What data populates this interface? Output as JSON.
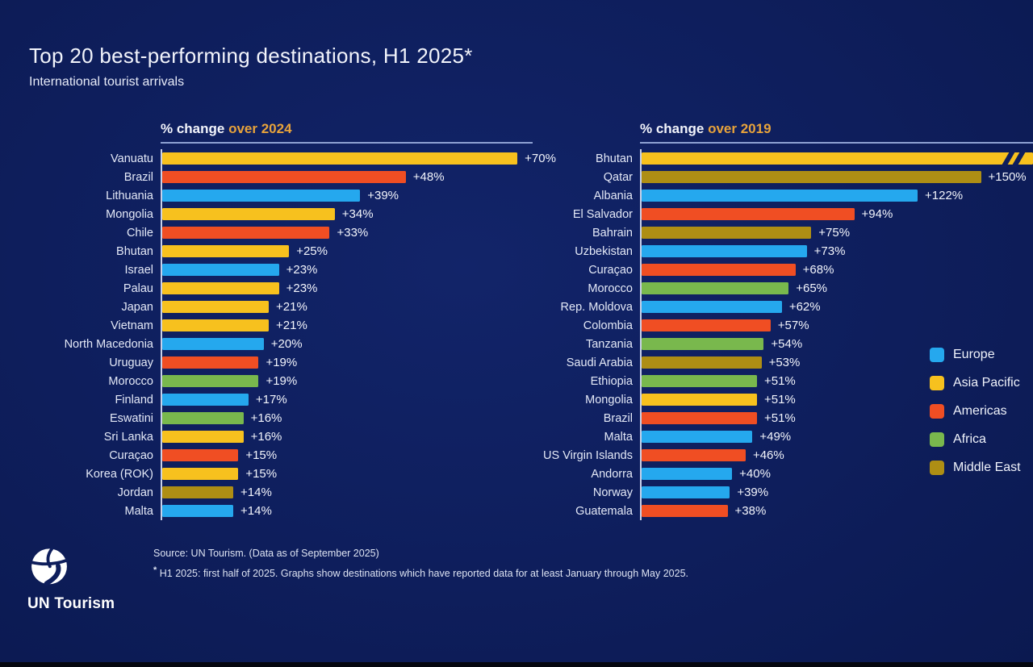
{
  "page": {
    "title": "Top 20 best-performing destinations, H1 2025*",
    "subtitle": "International tourist arrivals",
    "source_line": "Source: UN Tourism. (Data as of September 2025)",
    "footnote_star": "*",
    "footnote": " H1 2025: first half of 2025. Graphs show destinations which have reported data for at least January through May 2025.",
    "brand_name": "UN Tourism"
  },
  "colors": {
    "background": "#0e1e5c",
    "header_accent": "#e8a33b",
    "europe": "#25a8ee",
    "asia_pacific": "#f7c11e",
    "americas": "#f04e23",
    "africa": "#79b84d",
    "middle_east": "#ae8e14"
  },
  "legend": {
    "position": "right",
    "items": [
      {
        "label": "Europe",
        "region": "europe"
      },
      {
        "label": "Asia Pacific",
        "region": "asia_pacific"
      },
      {
        "label": "Americas",
        "region": "americas"
      },
      {
        "label": "Africa",
        "region": "africa"
      },
      {
        "label": "Middle East",
        "region": "middle_east"
      }
    ]
  },
  "chart_data": [
    {
      "type": "bar",
      "orientation": "horizontal",
      "title_prefix": "% change ",
      "title_accent": "over 2024",
      "unit": "%",
      "axis_min": 0,
      "axis_max_render": 73,
      "grid": false,
      "rows": [
        {
          "country": "Vanuatu",
          "region": "asia_pacific",
          "value": 70,
          "label": "+70%"
        },
        {
          "country": "Brazil",
          "region": "americas",
          "value": 48,
          "label": "+48%"
        },
        {
          "country": "Lithuania",
          "region": "europe",
          "value": 39,
          "label": "+39%"
        },
        {
          "country": "Mongolia",
          "region": "asia_pacific",
          "value": 34,
          "label": "+34%"
        },
        {
          "country": "Chile",
          "region": "americas",
          "value": 33,
          "label": "+33%"
        },
        {
          "country": "Bhutan",
          "region": "asia_pacific",
          "value": 25,
          "label": "+25%"
        },
        {
          "country": "Israel",
          "region": "europe",
          "value": 23,
          "label": "+23%"
        },
        {
          "country": "Palau",
          "region": "asia_pacific",
          "value": 23,
          "label": "+23%"
        },
        {
          "country": "Japan",
          "region": "asia_pacific",
          "value": 21,
          "label": "+21%"
        },
        {
          "country": "Vietnam",
          "region": "asia_pacific",
          "value": 21,
          "label": "+21%"
        },
        {
          "country": "North Macedonia",
          "region": "europe",
          "value": 20,
          "label": "+20%"
        },
        {
          "country": "Uruguay",
          "region": "americas",
          "value": 19,
          "label": "+19%"
        },
        {
          "country": "Morocco",
          "region": "africa",
          "value": 19,
          "label": "+19%"
        },
        {
          "country": "Finland",
          "region": "europe",
          "value": 17,
          "label": "+17%"
        },
        {
          "country": "Eswatini",
          "region": "africa",
          "value": 16,
          "label": "+16%"
        },
        {
          "country": "Sri Lanka",
          "region": "asia_pacific",
          "value": 16,
          "label": "+16%"
        },
        {
          "country": "Curaçao",
          "region": "americas",
          "value": 15,
          "label": "+15%"
        },
        {
          "country": "Korea (ROK)",
          "region": "asia_pacific",
          "value": 15,
          "label": "+15%"
        },
        {
          "country": "Jordan",
          "region": "middle_east",
          "value": 14,
          "label": "+14%"
        },
        {
          "country": "Malta",
          "region": "europe",
          "value": 14,
          "label": "+14%"
        }
      ]
    },
    {
      "type": "bar",
      "orientation": "horizontal",
      "title_prefix": "% change ",
      "title_accent": "over 2019",
      "unit": "%",
      "axis_min": 0,
      "axis_max_render": 173,
      "grid": false,
      "rows": [
        {
          "country": "Bhutan",
          "region": "asia_pacific",
          "value": null,
          "label": "",
          "clipped": true
        },
        {
          "country": "Qatar",
          "region": "middle_east",
          "value": 150,
          "label": "+150%"
        },
        {
          "country": "Albania",
          "region": "europe",
          "value": 122,
          "label": "+122%"
        },
        {
          "country": "El Salvador",
          "region": "americas",
          "value": 94,
          "label": "+94%"
        },
        {
          "country": "Bahrain",
          "region": "middle_east",
          "value": 75,
          "label": "+75%"
        },
        {
          "country": "Uzbekistan",
          "region": "europe",
          "value": 73,
          "label": "+73%"
        },
        {
          "country": "Curaçao",
          "region": "americas",
          "value": 68,
          "label": "+68%"
        },
        {
          "country": "Morocco",
          "region": "africa",
          "value": 65,
          "label": "+65%"
        },
        {
          "country": "Rep. Moldova",
          "region": "europe",
          "value": 62,
          "label": "+62%"
        },
        {
          "country": "Colombia",
          "region": "americas",
          "value": 57,
          "label": "+57%"
        },
        {
          "country": "Tanzania",
          "region": "africa",
          "value": 54,
          "label": "+54%"
        },
        {
          "country": "Saudi Arabia",
          "region": "middle_east",
          "value": 53,
          "label": "+53%"
        },
        {
          "country": "Ethiopia",
          "region": "africa",
          "value": 51,
          "label": "+51%"
        },
        {
          "country": "Mongolia",
          "region": "asia_pacific",
          "value": 51,
          "label": "+51%"
        },
        {
          "country": "Brazil",
          "region": "americas",
          "value": 51,
          "label": "+51%"
        },
        {
          "country": "Malta",
          "region": "europe",
          "value": 49,
          "label": "+49%"
        },
        {
          "country": "US Virgin Islands",
          "region": "americas",
          "value": 46,
          "label": "+46%"
        },
        {
          "country": "Andorra",
          "region": "europe",
          "value": 40,
          "label": "+40%"
        },
        {
          "country": "Norway",
          "region": "europe",
          "value": 39,
          "label": "+39%"
        },
        {
          "country": "Guatemala",
          "region": "americas",
          "value": 38,
          "label": "+38%"
        }
      ]
    }
  ]
}
